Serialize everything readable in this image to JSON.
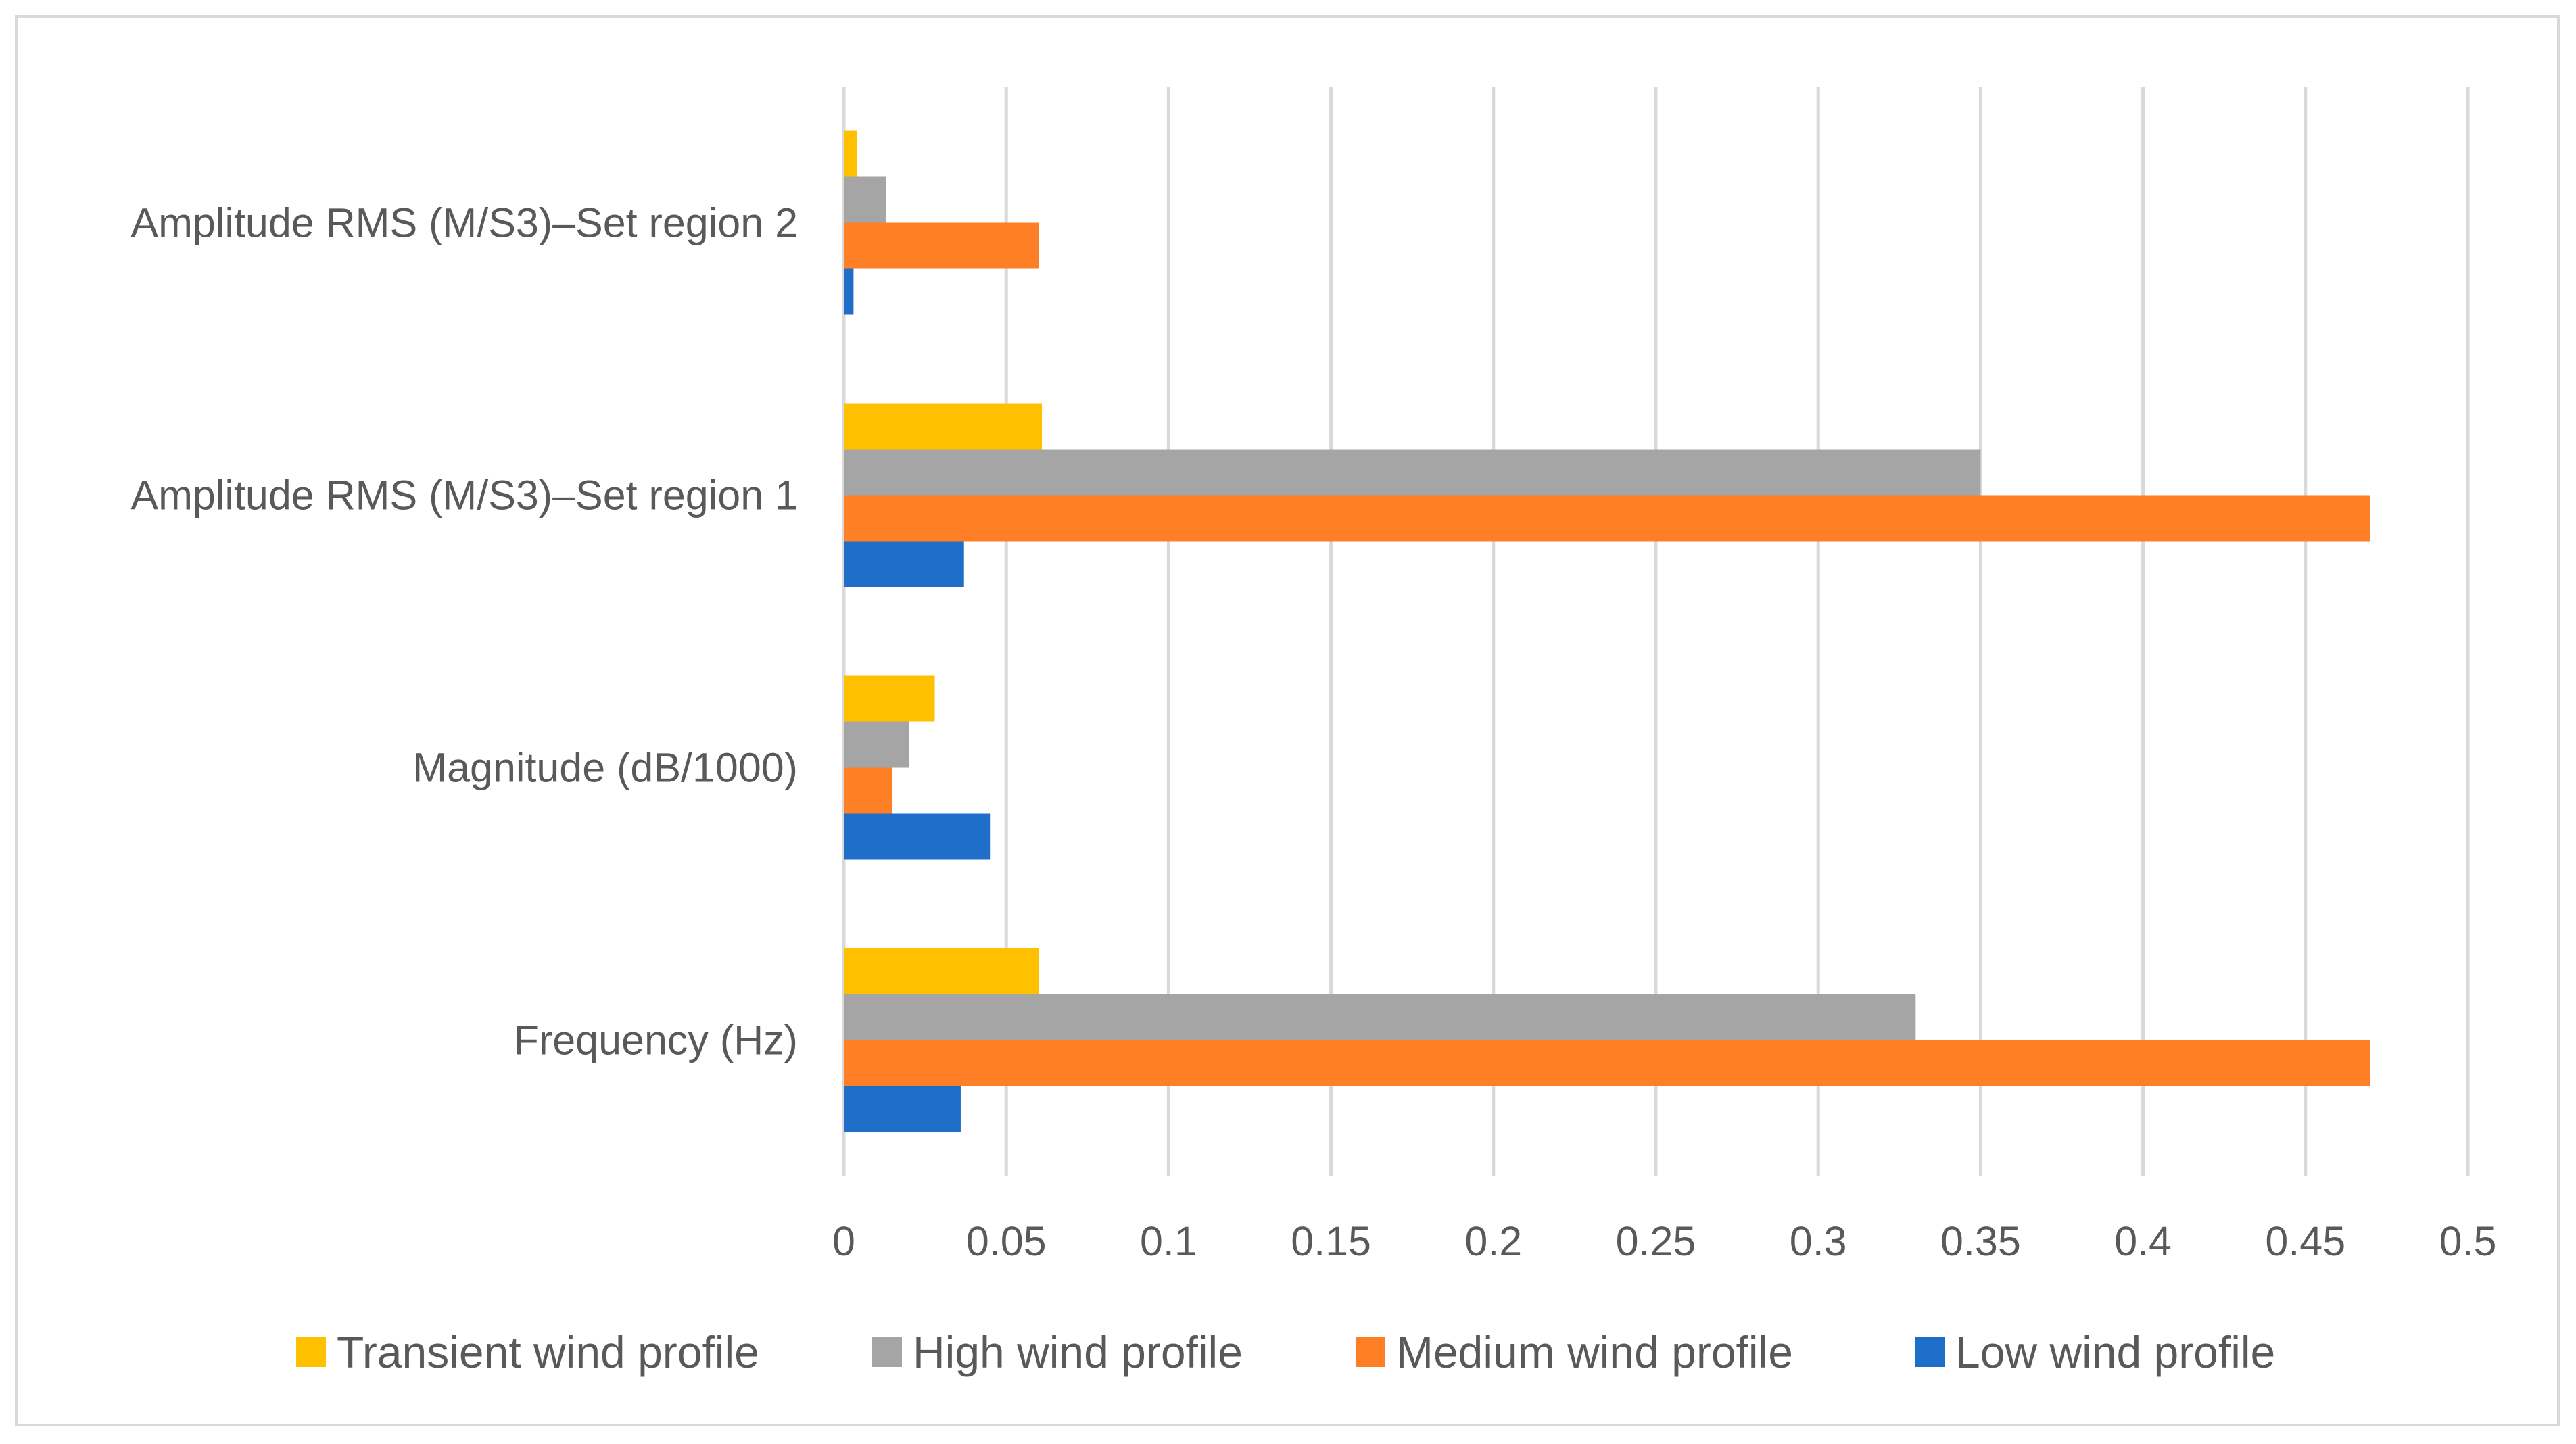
{
  "chart_data": {
    "type": "bar",
    "orientation": "horizontal",
    "title": "",
    "xlabel": "",
    "ylabel": "",
    "xlim": [
      0,
      0.5
    ],
    "ticks": [
      "0",
      "0.05",
      "0.1",
      "0.15",
      "0.2",
      "0.25",
      "0.3",
      "0.35",
      "0.4",
      "0.45",
      "0.5"
    ],
    "tick_values": [
      0,
      0.05,
      0.1,
      0.15,
      0.2,
      0.25,
      0.3,
      0.35,
      0.4,
      0.45,
      0.5
    ],
    "grid": true,
    "legend_position": "bottom",
    "categories": [
      "Frequency (Hz)",
      "Magnitude (dB/1000)",
      "Amplitude RMS (M/S3)–Set region 1",
      "Amplitude RMS (M/S3)–Set region 2"
    ],
    "series": [
      {
        "name": "Low wind profile",
        "color": "#1f6fc8",
        "values": [
          0.036,
          0.045,
          0.037,
          0.003
        ]
      },
      {
        "name": "Medium wind profile",
        "color": "#ff7f27",
        "values": [
          0.47,
          0.015,
          0.47,
          0.06
        ]
      },
      {
        "name": "High wind profile",
        "color": "#a5a5a5",
        "values": [
          0.33,
          0.02,
          0.35,
          0.013
        ]
      },
      {
        "name": "Transient wind profile",
        "color": "#ffc000",
        "values": [
          0.06,
          0.028,
          0.061,
          0.004
        ]
      }
    ],
    "legend_order": [
      "Transient wind profile",
      "High wind profile",
      "Medium wind profile",
      "Low wind profile"
    ]
  }
}
